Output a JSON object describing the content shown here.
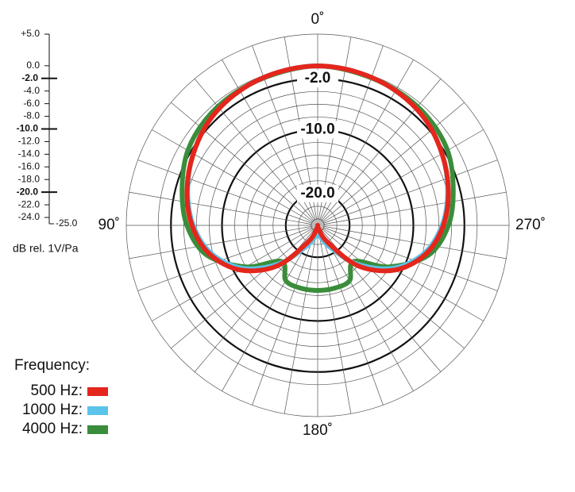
{
  "chart_data": {
    "type": "polar",
    "angles": [
      0,
      15,
      30,
      45,
      60,
      75,
      90,
      105,
      120,
      135,
      150,
      165,
      180,
      195,
      210,
      225,
      240,
      255,
      270,
      285,
      300,
      315,
      330,
      345
    ],
    "series": [
      {
        "name": "4000 Hz:",
        "color": "#3a8d3a",
        "values": [
          0,
          -0.3,
          -0.5,
          -0.8,
          -1.5,
          -3,
          -4.5,
          -7,
          -12,
          -17,
          -15,
          -14.8,
          -14.8,
          -14.8,
          -15,
          -17,
          -12,
          -7,
          -4.5,
          -3,
          -1.5,
          -0.8,
          -0.5,
          -0.3
        ]
      },
      {
        "name": "1000 Hz:",
        "color": "#5bc4ea",
        "values": [
          0,
          -0.2,
          -0.6,
          -1.3,
          -2.5,
          -3.9,
          -5.5,
          -7.8,
          -11.5,
          -16.5,
          -21,
          -23,
          -24,
          -23,
          -21,
          -16.5,
          -11.5,
          -7.8,
          -5.5,
          -3.9,
          -2.5,
          -1.3,
          -0.6,
          -0.2
        ]
      },
      {
        "name": "500 Hz:",
        "color": "#e4261c",
        "values": [
          0,
          -0.2,
          -0.6,
          -1.3,
          -2.5,
          -3.8,
          -5.3,
          -7.5,
          -11,
          -16,
          -22,
          -24.5,
          -25,
          -24.5,
          -22,
          -16,
          -11,
          -7.5,
          -5.3,
          -3.8,
          -2.5,
          -1.3,
          -0.6,
          -0.2
        ]
      }
    ],
    "rlim": [
      -25,
      5
    ],
    "rticks": [
      {
        "value": 5,
        "label": "+5.0"
      },
      {
        "value": 0,
        "label": "0.0"
      },
      {
        "value": -2,
        "label": "-2.0"
      },
      {
        "value": -4,
        "label": "-4.0"
      },
      {
        "value": -6,
        "label": "-6.0"
      },
      {
        "value": -8,
        "label": "-8.0"
      },
      {
        "value": -10,
        "label": "-10.0"
      },
      {
        "value": -12,
        "label": "-12.0"
      },
      {
        "value": -14,
        "label": "-14.0"
      },
      {
        "value": -16,
        "label": "-16.0"
      },
      {
        "value": -18,
        "label": "-18.0"
      },
      {
        "value": -20,
        "label": "-20.0"
      },
      {
        "value": -22,
        "label": "-22.0"
      },
      {
        "value": -24,
        "label": "-24.0"
      },
      {
        "value": -25,
        "label": "-25.0"
      }
    ],
    "ring_labels": [
      {
        "value": -2,
        "label": "-2.0"
      },
      {
        "value": -10,
        "label": "-10.0"
      },
      {
        "value": -20,
        "label": "-20.0"
      }
    ],
    "thetaticks": [
      {
        "value": 0,
        "label": "0˚"
      },
      {
        "value": 90,
        "label": "90˚"
      },
      {
        "value": 180,
        "label": "180˚"
      },
      {
        "value": 270,
        "label": "270˚"
      }
    ],
    "r_axis_label": "dB rel. 1V/Pa",
    "legend_title": "Frequency:"
  }
}
